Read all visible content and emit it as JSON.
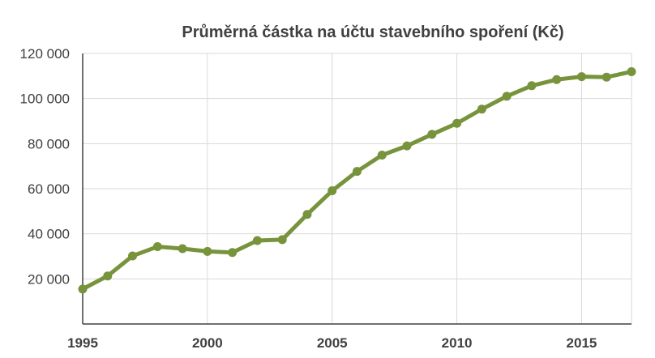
{
  "chart_data": {
    "type": "line",
    "title": "Průměrná částka na účtu stavebního spoření (Kč)",
    "xlabel": "",
    "ylabel": "",
    "x": [
      1995,
      1996,
      1997,
      1998,
      1999,
      2000,
      2001,
      2002,
      2003,
      2004,
      2005,
      2006,
      2007,
      2008,
      2009,
      2010,
      2011,
      2012,
      2013,
      2014,
      2015,
      2016,
      2017
    ],
    "series": [
      {
        "values": [
          15500,
          21300,
          30200,
          34300,
          33400,
          32200,
          31700,
          37000,
          37400,
          48600,
          59100,
          67700,
          74900,
          79000,
          84100,
          89000,
          95300,
          101000,
          105700,
          108400,
          109700,
          109500,
          111900
        ]
      }
    ],
    "ylim": [
      0,
      120000
    ],
    "xlim": [
      1995,
      2017
    ],
    "yticks": [
      20000,
      40000,
      60000,
      80000,
      100000,
      120000
    ],
    "ytick_labels": [
      "20 000",
      "40 000",
      "60 000",
      "80 000",
      "100 000",
      "120 000"
    ],
    "xticks": [
      1995,
      2000,
      2005,
      2010,
      2015
    ],
    "xtick_labels": [
      "1995",
      "2000",
      "2005",
      "2010",
      "2015"
    ],
    "grid": true,
    "legend": "none",
    "colors": {
      "line": "#77933c",
      "grid": "#d9d9d9",
      "axis": "#404040",
      "text": "#404040"
    }
  }
}
